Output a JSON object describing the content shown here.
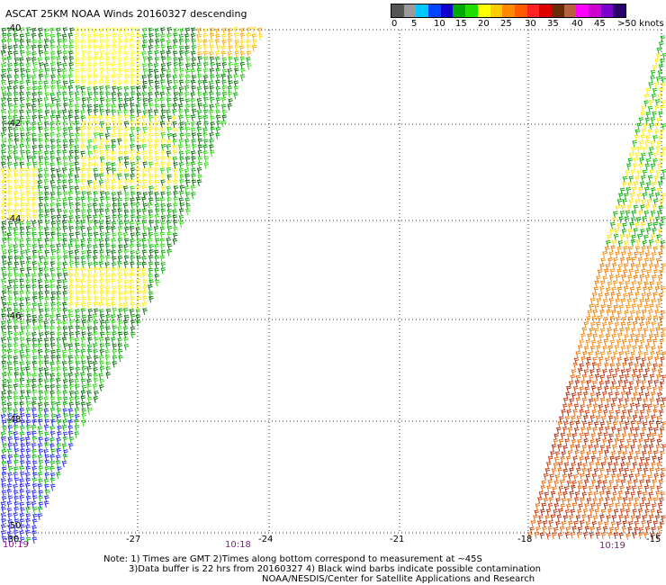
{
  "header": {
    "title": "ASCAT 25KM NOAA Winds 20160327 descending"
  },
  "colorbar": {
    "colors": [
      "#555555",
      "#9a9a9a",
      "#00c8ff",
      "#0044ff",
      "#1000cc",
      "#00aa00",
      "#22dd00",
      "#ffff00",
      "#ffcc00",
      "#ff8800",
      "#ff5a00",
      "#ff2222",
      "#dd0000",
      "#6b2a0a",
      "#b86040",
      "#ff00ff",
      "#cc00cc",
      "#7a00cc",
      "#2a006a"
    ],
    "ticks": [
      "0",
      "5",
      "10",
      "15",
      "20",
      "25",
      "30",
      "35",
      "40",
      "45",
      ">50 knots"
    ]
  },
  "map": {
    "lat_labels": [
      "-40",
      "-42",
      "-44",
      "-46",
      "-48",
      "-50"
    ],
    "lon_labels": [
      "-30",
      "-27",
      "-24",
      "-21",
      "-18",
      "-15"
    ],
    "time_labels": [
      "10:19",
      "10:18",
      "10:19"
    ]
  },
  "notes": [
    "Note: 1) Times are GMT 2)Times along bottom correspond to measurement at ~45S",
    "3)Data buffer is 22 hrs from 20160327 4) Black wind barbs indicate possible contamination",
    "NOAA/NESDIS/Center for Satellite Applications and Research"
  ]
}
